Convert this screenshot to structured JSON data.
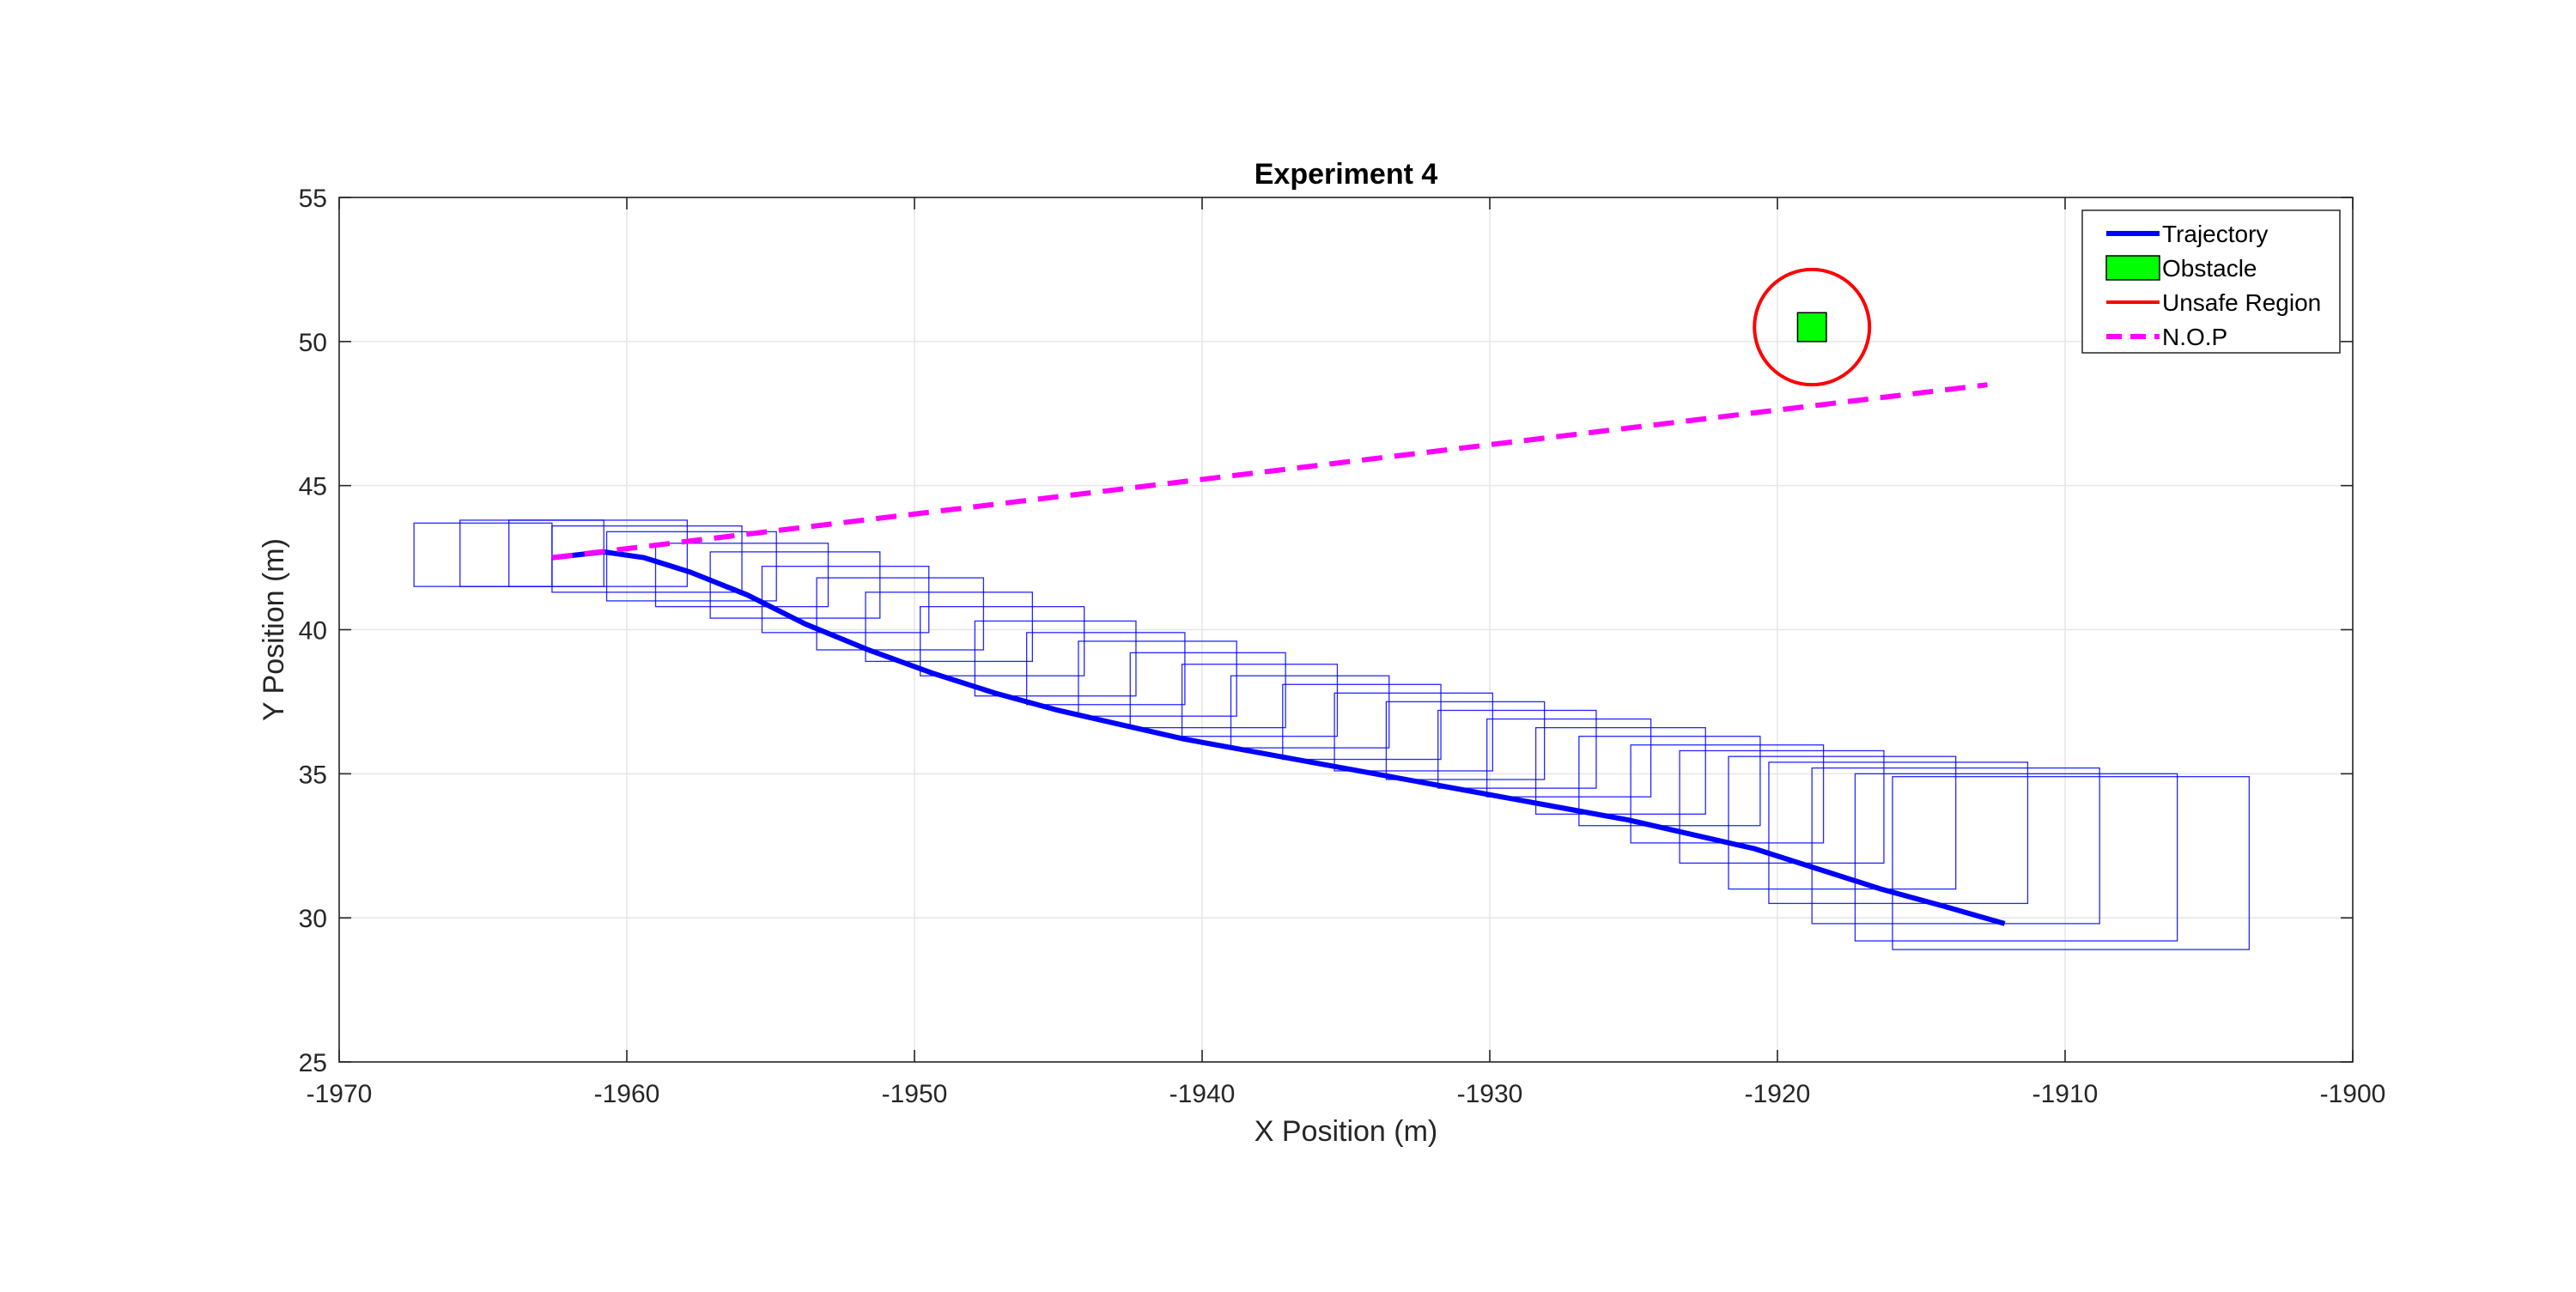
{
  "chart_data": {
    "type": "line",
    "title": "Experiment 4",
    "xlabel": "X Position (m)",
    "ylabel": "Y Position (m)",
    "xlim": [
      -1970,
      -1900
    ],
    "ylim": [
      25,
      55
    ],
    "xticks": [
      -1970,
      -1960,
      -1950,
      -1940,
      -1930,
      -1920,
      -1910,
      -1900
    ],
    "yticks": [
      25,
      30,
      35,
      40,
      45,
      50,
      55
    ],
    "xtick_labels": [
      "-1970",
      "-1960",
      "-1950",
      "-1940",
      "-1930",
      "-1920",
      "-1910",
      "-1900"
    ],
    "ytick_labels": [
      "25",
      "30",
      "35",
      "40",
      "45",
      "50",
      "55"
    ],
    "grid": true,
    "legend_position": "top-right",
    "colors": {
      "trajectory": "#0000ff",
      "boxes": "#0000ff",
      "obstacle_fill": "#00ff00",
      "unsafe": "#ff0000",
      "nop": "#ff00ff",
      "grid": "#e6e6e6",
      "axes": "#262626"
    },
    "legend": [
      {
        "label": "Trajectory",
        "key": "trajectory",
        "style": "line"
      },
      {
        "label": "Obstacle",
        "key": "obstacle",
        "style": "patch"
      },
      {
        "label": "Unsafe Region",
        "key": "unsafe",
        "style": "line"
      },
      {
        "label": "N.O.P",
        "key": "nop",
        "style": "dashed"
      }
    ],
    "series": [
      {
        "name": "Trajectory",
        "x": [
          -1962.6,
          -1960.8,
          -1959.4,
          -1957.8,
          -1955.8,
          -1953.8,
          -1951.6,
          -1949.4,
          -1947.2,
          -1945.0,
          -1942.8,
          -1940.6,
          -1938.4,
          -1936.2,
          -1934.0,
          -1931.8,
          -1929.6,
          -1927.4,
          -1925.2,
          -1923.0,
          -1920.8,
          -1918.6,
          -1916.4,
          -1914.2,
          -1912.1
        ],
        "y": [
          42.5,
          42.7,
          42.5,
          42.0,
          41.2,
          40.2,
          39.3,
          38.5,
          37.8,
          37.2,
          36.7,
          36.2,
          35.8,
          35.4,
          35.0,
          34.6,
          34.2,
          33.8,
          33.4,
          32.9,
          32.4,
          31.7,
          31.0,
          30.4,
          29.8
        ]
      },
      {
        "name": "N.O.P",
        "x": [
          -1962.6,
          -1912.7
        ],
        "y": [
          42.5,
          48.5
        ]
      }
    ],
    "obstacle": {
      "x": -1918.8,
      "y": 50.5,
      "width": 1.0,
      "height": 1.0
    },
    "unsafe_region": {
      "cx": -1918.8,
      "cy": 50.5,
      "r": 2.0
    },
    "reachable_boxes": [
      {
        "x1": -1967.4,
        "x2": -1962.6,
        "y1": 41.5,
        "y2": 43.7
      },
      {
        "x1": -1965.8,
        "x2": -1960.8,
        "y1": 41.5,
        "y2": 43.8
      },
      {
        "x1": -1964.1,
        "x2": -1957.9,
        "y1": 41.5,
        "y2": 43.8
      },
      {
        "x1": -1962.6,
        "x2": -1956.0,
        "y1": 41.3,
        "y2": 43.6
      },
      {
        "x1": -1960.7,
        "x2": -1954.8,
        "y1": 41.0,
        "y2": 43.4
      },
      {
        "x1": -1959.0,
        "x2": -1953.0,
        "y1": 40.8,
        "y2": 43.0
      },
      {
        "x1": -1957.1,
        "x2": -1951.2,
        "y1": 40.4,
        "y2": 42.7
      },
      {
        "x1": -1955.3,
        "x2": -1949.5,
        "y1": 39.9,
        "y2": 42.2
      },
      {
        "x1": -1953.4,
        "x2": -1947.6,
        "y1": 39.3,
        "y2": 41.8
      },
      {
        "x1": -1951.7,
        "x2": -1945.9,
        "y1": 38.9,
        "y2": 41.3
      },
      {
        "x1": -1949.8,
        "x2": -1944.1,
        "y1": 38.4,
        "y2": 40.8
      },
      {
        "x1": -1947.9,
        "x2": -1942.3,
        "y1": 37.7,
        "y2": 40.3
      },
      {
        "x1": -1946.1,
        "x2": -1940.6,
        "y1": 37.4,
        "y2": 39.9
      },
      {
        "x1": -1944.3,
        "x2": -1938.8,
        "y1": 37.0,
        "y2": 39.6
      },
      {
        "x1": -1942.5,
        "x2": -1937.1,
        "y1": 36.6,
        "y2": 39.2
      },
      {
        "x1": -1940.7,
        "x2": -1935.3,
        "y1": 36.3,
        "y2": 38.8
      },
      {
        "x1": -1939.0,
        "x2": -1933.5,
        "y1": 35.9,
        "y2": 38.4
      },
      {
        "x1": -1937.2,
        "x2": -1931.7,
        "y1": 35.5,
        "y2": 38.1
      },
      {
        "x1": -1935.4,
        "x2": -1929.9,
        "y1": 35.1,
        "y2": 37.8
      },
      {
        "x1": -1933.6,
        "x2": -1928.1,
        "y1": 34.8,
        "y2": 37.5
      },
      {
        "x1": -1931.8,
        "x2": -1926.3,
        "y1": 34.5,
        "y2": 37.2
      },
      {
        "x1": -1930.1,
        "x2": -1924.4,
        "y1": 34.2,
        "y2": 36.9
      },
      {
        "x1": -1928.4,
        "x2": -1922.5,
        "y1": 33.6,
        "y2": 36.6
      },
      {
        "x1": -1926.9,
        "x2": -1920.6,
        "y1": 33.2,
        "y2": 36.3
      },
      {
        "x1": -1925.1,
        "x2": -1918.4,
        "y1": 32.6,
        "y2": 36.0
      },
      {
        "x1": -1923.4,
        "x2": -1916.3,
        "y1": 31.9,
        "y2": 35.8
      },
      {
        "x1": -1921.7,
        "x2": -1913.8,
        "y1": 31.0,
        "y2": 35.6
      },
      {
        "x1": -1920.3,
        "x2": -1911.3,
        "y1": 30.5,
        "y2": 35.4
      },
      {
        "x1": -1918.8,
        "x2": -1908.8,
        "y1": 29.8,
        "y2": 35.2
      },
      {
        "x1": -1917.3,
        "x2": -1906.1,
        "y1": 29.2,
        "y2": 35.0
      },
      {
        "x1": -1916.0,
        "x2": -1903.6,
        "y1": 28.9,
        "y2": 34.9
      }
    ]
  }
}
